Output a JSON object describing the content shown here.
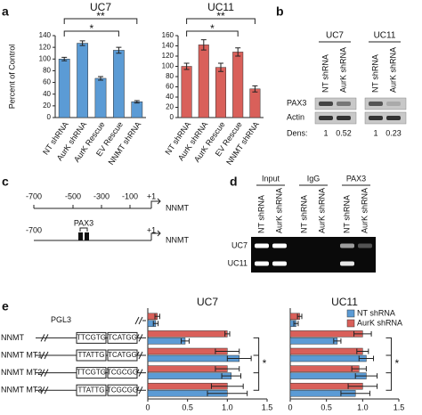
{
  "panel_labels": [
    "a",
    "b",
    "c",
    "d",
    "e"
  ],
  "chart_data": [
    {
      "type": "bar",
      "title": "UC7",
      "y_label": "Percent of Control",
      "categories": [
        "NT shRNA",
        "AurK shRNA",
        "AurK Rescue",
        "EV Rescue",
        "NNMT shRNA"
      ],
      "values": [
        100,
        127,
        67,
        115,
        27
      ],
      "errors": [
        3,
        4,
        3,
        5,
        2
      ],
      "color": "#5b9bd5",
      "ylim": [
        0,
        140
      ],
      "yticks": [
        0,
        20,
        40,
        60,
        80,
        100,
        120,
        140
      ],
      "annotations": [
        "*",
        "**"
      ]
    },
    {
      "type": "bar",
      "title": "UC11",
      "categories": [
        "NT shRNA",
        "AurK shRNA",
        "AurK Rescue",
        "EV Rescue",
        "NNMT shRNA"
      ],
      "values": [
        100,
        142,
        98,
        128,
        56
      ],
      "errors": [
        6,
        10,
        8,
        8,
        6
      ],
      "color": "#d9605a",
      "ylim": [
        0,
        160
      ],
      "yticks": [
        0,
        20,
        40,
        60,
        80,
        100,
        120,
        140,
        160
      ],
      "annotations": [
        "*",
        "**"
      ]
    },
    {
      "type": "barh",
      "title": "UC7",
      "categories": [
        "PGL3",
        "NNMT",
        "NNMT MT1",
        "NNMT MT2",
        "NNMT MT3"
      ],
      "series": [
        {
          "color": "#5b9bd5",
          "values": [
            0.1,
            0.47,
            1.15,
            1.05,
            1.0
          ],
          "errors": [
            0.03,
            0.05,
            0.15,
            0.12,
            0.25
          ]
        },
        {
          "color": "#d9605a",
          "values": [
            0.12,
            1.0,
            1.0,
            1.0,
            1.0
          ],
          "errors": [
            0.03,
            0.03,
            0.15,
            0.15,
            0.2
          ]
        }
      ],
      "xlim": [
        0,
        1.5
      ],
      "xticks": [
        0,
        0.5,
        {
          "value": 1,
          "label": "1.0"
        },
        1.5
      ],
      "annotations": [
        "*"
      ]
    },
    {
      "type": "barh",
      "title": "UC11",
      "series": [
        {
          "name": "NT shRNA",
          "color": "#5b9bd5",
          "values": [
            0.08,
            0.65,
            1.05,
            1.05,
            0.9
          ],
          "errors": [
            0.03,
            0.05,
            0.1,
            0.15,
            0.2
          ]
        },
        {
          "name": "AurK shRNA",
          "color": "#d9605a",
          "values": [
            0.13,
            1.0,
            1.0,
            0.95,
            1.0
          ],
          "errors": [
            0.03,
            0.12,
            0.08,
            0.1,
            0.2
          ]
        }
      ],
      "xlim": [
        0,
        1.5
      ],
      "xticks": [
        0,
        0.5,
        {
          "value": 1,
          "label": "1.0"
        },
        1.5
      ],
      "legend": "upper right",
      "annotations": [
        "*"
      ]
    }
  ],
  "panel_b": {
    "columns": [
      "UC7",
      "UC11"
    ],
    "lanes": [
      "NT shRNA",
      "AurK shRNA",
      "NT shRNA",
      "AurK shRNA"
    ],
    "rows": [
      "PAX3",
      "Actin"
    ],
    "dens_label": "Dens:",
    "densities": [
      1,
      0.52,
      1,
      0.23
    ]
  },
  "panel_c": {
    "scale_ticks": [
      "-700",
      "-500",
      "-300",
      "-100",
      "+1"
    ],
    "gene": "NNMT",
    "site_ticks": [
      "-700",
      "+1"
    ],
    "site": "PAX3",
    "gene2": "NNMT"
  },
  "panel_d": {
    "groups": [
      "Input",
      "IgG",
      "PAX3"
    ],
    "lanes": [
      "NT shRNA",
      "AurK shRNA",
      "NT shRNA",
      "AurK shRNA",
      "NT shRNA",
      "AurK shRNA"
    ],
    "rows": [
      "UC7",
      "UC11"
    ]
  },
  "panel_e": {
    "constructs": [
      [
        "TTCGTG",
        "TCATGG"
      ],
      [
        "TTATTG",
        "TCATGG"
      ],
      [
        "TTCGTG",
        "TCGCGG"
      ],
      [
        "TTATTG",
        "TCGCGG"
      ]
    ]
  }
}
